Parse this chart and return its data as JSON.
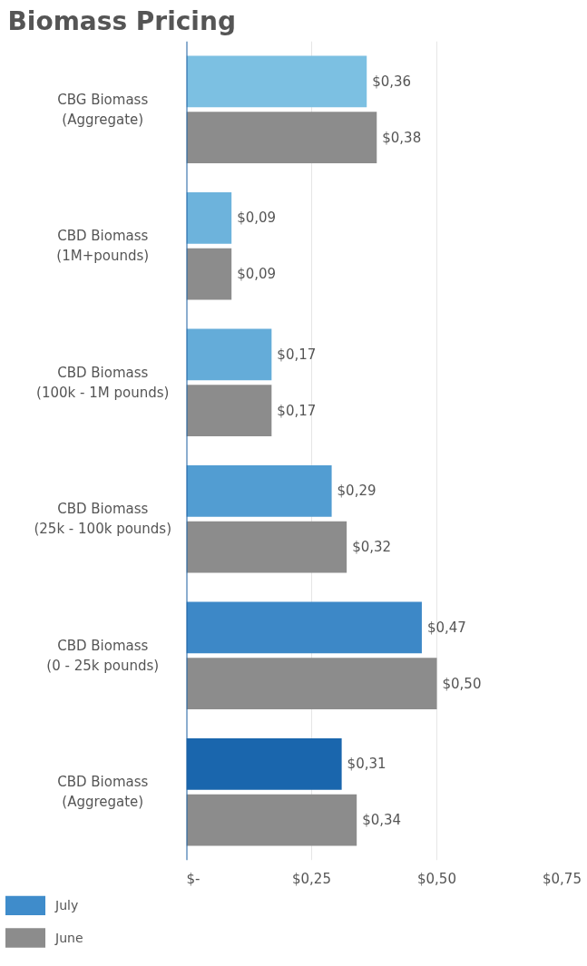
{
  "chart_data": {
    "type": "bar",
    "orientation": "horizontal",
    "title": "Biomass Pricing",
    "categories": [
      "CBG Biomass\n(Aggregate)",
      "CBD Biomass\n(1M+pounds)",
      "CBD Biomass\n(100k - 1M pounds)",
      "CBD Biomass\n(25k - 100k pounds)",
      "CBD Biomass\n(0 - 25k pounds)",
      "CBD Biomass\n(Aggregate)"
    ],
    "series": [
      {
        "name": "July",
        "color": "#3f8ccb",
        "colors": [
          "#7cc0e2",
          "#6db3dc",
          "#64acd9",
          "#529dd2",
          "#3d88c7",
          "#1a66ad"
        ],
        "values": [
          0.36,
          0.09,
          0.17,
          0.29,
          0.47,
          0.31
        ],
        "value_labels": [
          "$0,36",
          "$0,09",
          "$0,17",
          "$0,29",
          "$0,47",
          "$0,31"
        ]
      },
      {
        "name": "June",
        "color": "#8c8c8c",
        "values": [
          0.38,
          0.09,
          0.17,
          0.32,
          0.5,
          0.34
        ],
        "value_labels": [
          "$0,38",
          "$0,09",
          "$0,17",
          "$0,32",
          "$0,50",
          "$0,34"
        ]
      }
    ],
    "xlim": [
      0,
      0.75
    ],
    "xticks": [
      {
        "value": 0,
        "label": "$-"
      },
      {
        "value": 0.25,
        "label": "$0,25"
      },
      {
        "value": 0.5,
        "label": "$0,50"
      },
      {
        "value": 0.75,
        "label": "$0,75"
      }
    ],
    "grid": "x",
    "legend": "bottom left"
  }
}
